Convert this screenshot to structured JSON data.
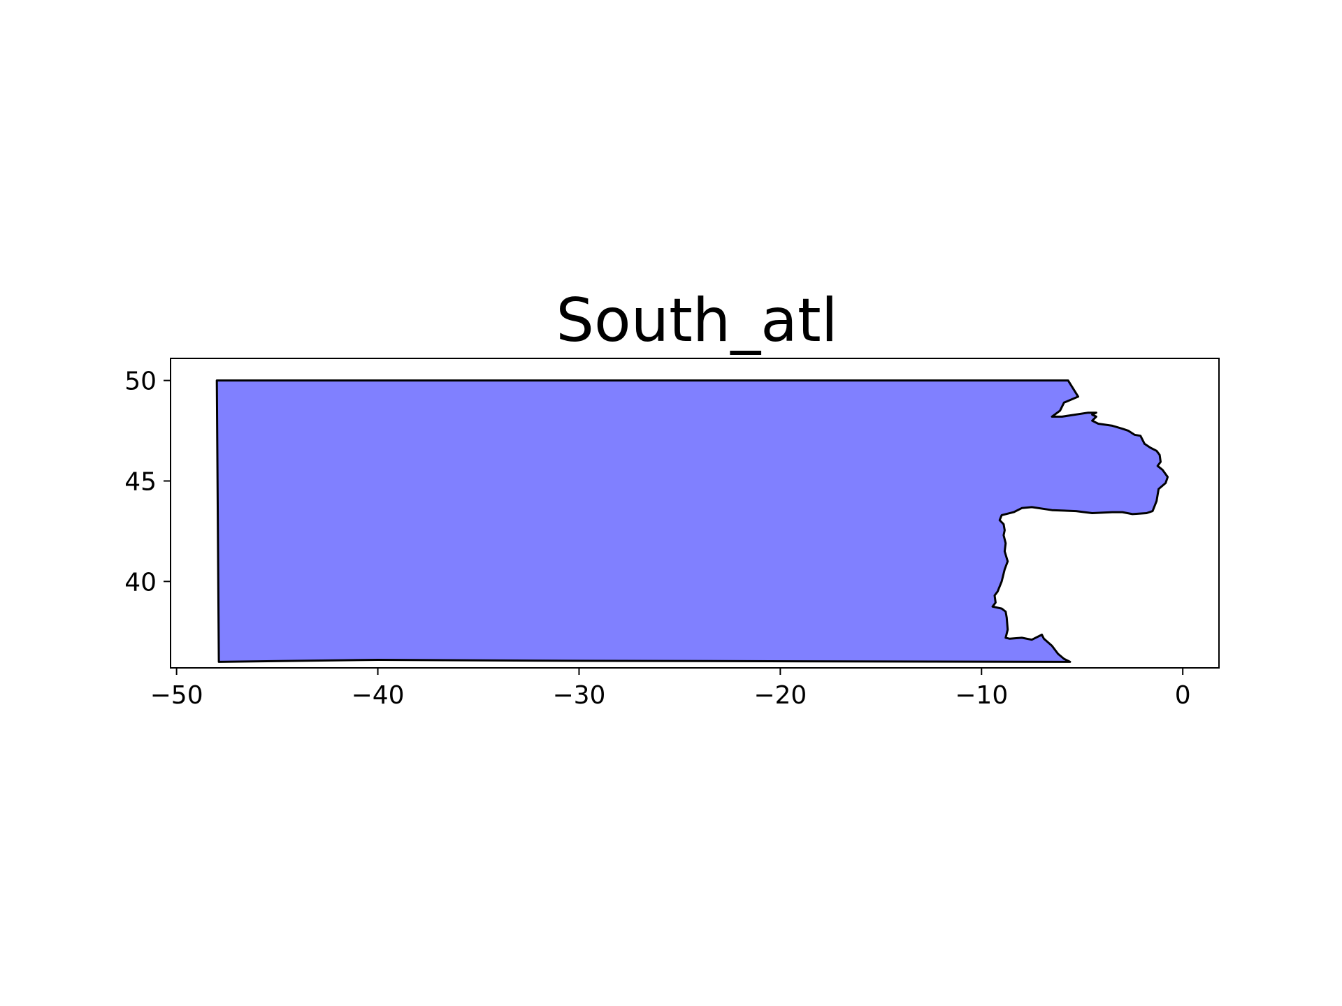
{
  "chart_data": {
    "type": "map",
    "title": "South_atl",
    "xlabel": "",
    "ylabel": "",
    "xlim": [
      -50.3,
      1.8
    ],
    "ylim": [
      35.7,
      51.1
    ],
    "grid": false,
    "x_ticks": [
      {
        "value": -50,
        "label": "−50"
      },
      {
        "value": -40,
        "label": "−40"
      },
      {
        "value": -30,
        "label": "−30"
      },
      {
        "value": -20,
        "label": "−20"
      },
      {
        "value": -10,
        "label": "−10"
      },
      {
        "value": 0,
        "label": "0"
      }
    ],
    "y_ticks": [
      {
        "value": 40,
        "label": "40"
      },
      {
        "value": 45,
        "label": "45"
      },
      {
        "value": 50,
        "label": "50"
      }
    ],
    "region": {
      "fill_color": "#8080ff",
      "edge_color": "#000000",
      "boundary": [
        [
          -48.0,
          50.0
        ],
        [
          -5.7,
          50.0
        ],
        [
          -5.2,
          49.2
        ],
        [
          -5.9,
          48.9
        ],
        [
          -6.1,
          48.5
        ],
        [
          -6.5,
          48.2
        ],
        [
          -6.0,
          48.2
        ],
        [
          -4.7,
          48.4
        ],
        [
          -4.3,
          48.4
        ],
        [
          -4.5,
          48.3
        ],
        [
          -4.3,
          48.2
        ],
        [
          -4.5,
          48.0
        ],
        [
          -4.2,
          47.85
        ],
        [
          -3.5,
          47.75
        ],
        [
          -3.0,
          47.6
        ],
        [
          -2.7,
          47.5
        ],
        [
          -2.4,
          47.3
        ],
        [
          -2.1,
          47.25
        ],
        [
          -1.9,
          46.85
        ],
        [
          -1.6,
          46.65
        ],
        [
          -1.3,
          46.5
        ],
        [
          -1.15,
          46.3
        ],
        [
          -1.1,
          45.95
        ],
        [
          -1.25,
          45.75
        ],
        [
          -1.0,
          45.55
        ],
        [
          -0.75,
          45.2
        ],
        [
          -0.85,
          44.9
        ],
        [
          -1.2,
          44.6
        ],
        [
          -1.3,
          44.0
        ],
        [
          -1.5,
          43.5
        ],
        [
          -1.8,
          43.4
        ],
        [
          -2.5,
          43.35
        ],
        [
          -3.0,
          43.45
        ],
        [
          -3.5,
          43.45
        ],
        [
          -4.5,
          43.4
        ],
        [
          -5.3,
          43.5
        ],
        [
          -6.5,
          43.55
        ],
        [
          -7.5,
          43.7
        ],
        [
          -8.0,
          43.65
        ],
        [
          -8.4,
          43.45
        ],
        [
          -9.0,
          43.3
        ],
        [
          -9.1,
          43.05
        ],
        [
          -8.9,
          42.85
        ],
        [
          -8.85,
          42.55
        ],
        [
          -8.9,
          42.3
        ],
        [
          -8.8,
          41.9
        ],
        [
          -8.85,
          41.5
        ],
        [
          -8.7,
          41.0
        ],
        [
          -8.85,
          40.6
        ],
        [
          -9.0,
          40.0
        ],
        [
          -9.2,
          39.5
        ],
        [
          -9.35,
          39.3
        ],
        [
          -9.3,
          38.95
        ],
        [
          -9.45,
          38.75
        ],
        [
          -9.0,
          38.65
        ],
        [
          -8.8,
          38.5
        ],
        [
          -8.75,
          38.2
        ],
        [
          -8.7,
          37.6
        ],
        [
          -8.8,
          37.2
        ],
        [
          -8.6,
          37.15
        ],
        [
          -8.0,
          37.2
        ],
        [
          -7.5,
          37.1
        ],
        [
          -7.0,
          37.35
        ],
        [
          -6.9,
          37.15
        ],
        [
          -6.5,
          36.8
        ],
        [
          -6.2,
          36.4
        ],
        [
          -5.9,
          36.15
        ],
        [
          -5.6,
          36.0
        ],
        [
          -30.0,
          36.05
        ],
        [
          -40.0,
          36.1
        ],
        [
          -47.9,
          36.0
        ]
      ]
    }
  }
}
